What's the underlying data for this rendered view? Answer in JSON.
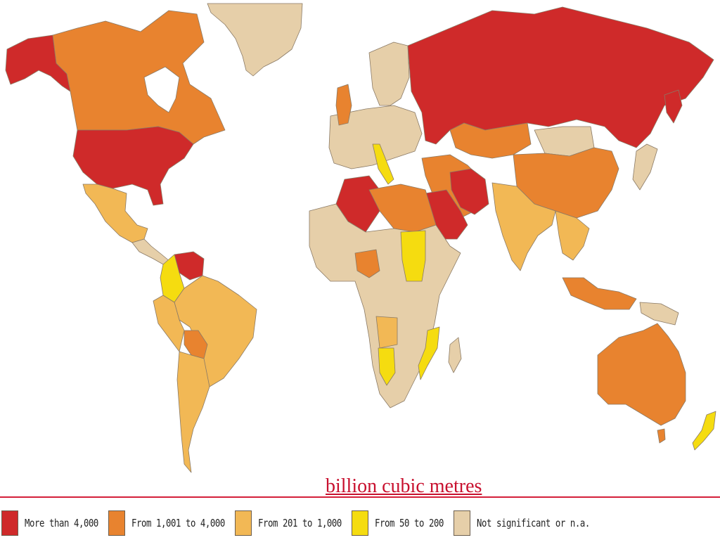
{
  "unit_label": "billion cubic metres",
  "colors": {
    "more_than_4000": "#cf2a2a",
    "from_1001_to_4000": "#e8832f",
    "from_201_to_1000": "#f2b855",
    "from_50_to_200": "#f5dc10",
    "not_significant": "#e6cfa9"
  },
  "legend": [
    {
      "label": "More than 4,000",
      "color": "#cf2a2a"
    },
    {
      "label": "From 1,001 to 4,000",
      "color": "#e8832f"
    },
    {
      "label": "From 201 to 1,000",
      "color": "#f2b855"
    },
    {
      "label": "From 50 to 200",
      "color": "#f5dc10"
    },
    {
      "label": "Not significant or n.a.",
      "color": "#e6cfa9"
    }
  ]
}
